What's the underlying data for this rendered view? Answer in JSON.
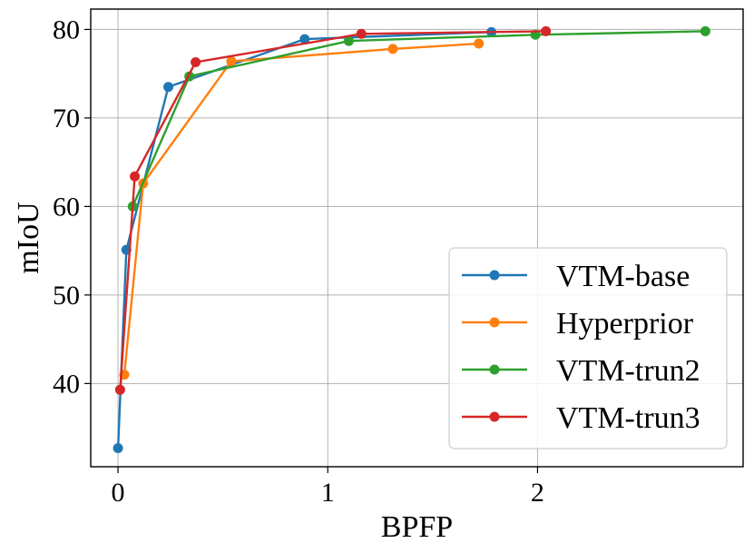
{
  "chart_data": {
    "type": "line",
    "title": "",
    "xlabel": "BPFP",
    "ylabel": "mIoU",
    "xlim": [
      -0.13,
      2.98
    ],
    "ylim": [
      30.6,
      82.3
    ],
    "xticks": [
      0,
      1,
      2
    ],
    "yticks": [
      40,
      50,
      60,
      70,
      80
    ],
    "grid": true,
    "legend_position": "lower-right",
    "series": [
      {
        "name": "VTM-base",
        "color": "#1f77b4",
        "x": [
          0.0,
          0.04,
          0.24,
          0.89,
          1.78
        ],
        "y": [
          32.7,
          55.1,
          73.5,
          78.9,
          79.7
        ]
      },
      {
        "name": "Hyperprior",
        "color": "#ff7f0e",
        "x": [
          0.03,
          0.12,
          0.54,
          1.31,
          1.72
        ],
        "y": [
          41.0,
          62.6,
          76.4,
          77.8,
          78.4
        ]
      },
      {
        "name": "VTM-trun2",
        "color": "#2ca02c",
        "x": [
          0.07,
          0.34,
          1.1,
          1.99,
          2.8
        ],
        "y": [
          60.0,
          74.7,
          78.7,
          79.4,
          79.8
        ]
      },
      {
        "name": "VTM-trun3",
        "color": "#d62728",
        "x": [
          0.01,
          0.08,
          0.37,
          1.16,
          2.04
        ],
        "y": [
          39.3,
          63.4,
          76.3,
          79.5,
          79.8
        ]
      }
    ]
  }
}
